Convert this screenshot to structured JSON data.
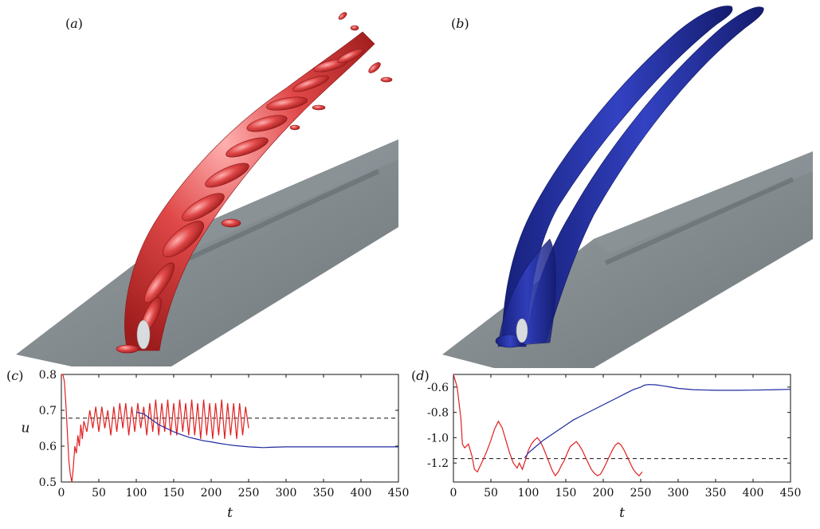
{
  "figure": {
    "panels": {
      "a": {
        "label": "a",
        "iso_color": "#d9393b"
      },
      "b": {
        "label": "b",
        "iso_color": "#2733a8"
      },
      "c": {
        "label": "c"
      },
      "d": {
        "label": "d"
      }
    },
    "colors": {
      "red": "#e02020",
      "blue": "#1f2a9e",
      "plate": "#7d8589",
      "dash": "#111111"
    }
  },
  "chart_data": [
    {
      "type": "line",
      "panel": "c",
      "xlabel": "t",
      "ylabel": "u",
      "xlim": [
        0,
        450
      ],
      "ylim": [
        0.5,
        0.8
      ],
      "xticks": [
        0,
        50,
        100,
        150,
        200,
        250,
        300,
        350,
        400,
        450
      ],
      "yticks": [
        0.5,
        0.6,
        0.7,
        0.8
      ],
      "ytick_labels": [
        "0.5",
        "0.6",
        "0.7",
        "0.8"
      ],
      "reference_line": 0.678,
      "series": [
        {
          "color": "red",
          "x": [
            0,
            2,
            4,
            6,
            8,
            10,
            12,
            14,
            16,
            18,
            20,
            22,
            24,
            26,
            28,
            30,
            34,
            38,
            42,
            46,
            50,
            54,
            58,
            62,
            66,
            70,
            74,
            78,
            82,
            86,
            90,
            94,
            98,
            102,
            106,
            110,
            114,
            118,
            122,
            126,
            130,
            134,
            138,
            142,
            146,
            150,
            154,
            158,
            162,
            166,
            170,
            174,
            178,
            182,
            186,
            190,
            194,
            198,
            202,
            206,
            210,
            214,
            218,
            222,
            226,
            230,
            234,
            238,
            242,
            246,
            250
          ],
          "y": [
            0.8,
            0.8,
            0.78,
            0.72,
            0.64,
            0.56,
            0.52,
            0.5,
            0.54,
            0.6,
            0.58,
            0.63,
            0.6,
            0.66,
            0.62,
            0.67,
            0.64,
            0.7,
            0.65,
            0.71,
            0.64,
            0.71,
            0.65,
            0.7,
            0.63,
            0.71,
            0.64,
            0.72,
            0.65,
            0.72,
            0.63,
            0.71,
            0.64,
            0.72,
            0.65,
            0.71,
            0.63,
            0.72,
            0.64,
            0.73,
            0.63,
            0.72,
            0.64,
            0.73,
            0.63,
            0.72,
            0.63,
            0.73,
            0.64,
            0.72,
            0.63,
            0.73,
            0.63,
            0.72,
            0.62,
            0.73,
            0.63,
            0.72,
            0.62,
            0.72,
            0.63,
            0.73,
            0.62,
            0.72,
            0.63,
            0.72,
            0.62,
            0.72,
            0.63,
            0.71,
            0.65
          ]
        },
        {
          "color": "blue",
          "x": [
            100,
            110,
            120,
            130,
            140,
            150,
            160,
            170,
            180,
            190,
            200,
            210,
            220,
            230,
            240,
            250,
            260,
            270,
            280,
            300,
            350,
            400,
            450
          ],
          "y": [
            0.695,
            0.69,
            0.675,
            0.66,
            0.65,
            0.64,
            0.632,
            0.625,
            0.62,
            0.615,
            0.612,
            0.608,
            0.605,
            0.602,
            0.6,
            0.598,
            0.597,
            0.596,
            0.597,
            0.598,
            0.598,
            0.598,
            0.598
          ]
        }
      ]
    },
    {
      "type": "line",
      "panel": "d",
      "xlabel": "t",
      "xlim": [
        0,
        450
      ],
      "ylim": [
        -1.35,
        -0.5
      ],
      "xticks": [
        0,
        50,
        100,
        150,
        200,
        250,
        300,
        350,
        400,
        450
      ],
      "yticks": [
        -1.2,
        -1.0,
        -0.8,
        -0.6
      ],
      "ytick_labels": [
        "-1.2",
        "-1.0",
        "-0.8",
        "-0.6"
      ],
      "reference_line": -1.165,
      "series": [
        {
          "color": "red",
          "x": [
            0,
            5,
            10,
            12,
            15,
            20,
            25,
            28,
            32,
            36,
            40,
            45,
            50,
            55,
            60,
            65,
            70,
            75,
            80,
            85,
            88,
            92,
            96,
            100,
            104,
            108,
            112,
            116,
            120,
            124,
            128,
            132,
            136,
            140,
            144,
            148,
            152,
            156,
            160,
            164,
            168,
            172,
            176,
            180,
            184,
            188,
            192,
            196,
            200,
            204,
            208,
            212,
            216,
            220,
            224,
            228,
            232,
            236,
            240,
            244,
            248,
            252
          ],
          "y": [
            -0.5,
            -0.6,
            -0.85,
            -1.05,
            -1.08,
            -1.05,
            -1.15,
            -1.25,
            -1.27,
            -1.22,
            -1.17,
            -1.1,
            -1.02,
            -0.93,
            -0.87,
            -0.92,
            -1.02,
            -1.12,
            -1.2,
            -1.24,
            -1.2,
            -1.25,
            -1.18,
            -1.1,
            -1.05,
            -1.02,
            -1.0,
            -1.03,
            -1.08,
            -1.14,
            -1.2,
            -1.26,
            -1.3,
            -1.27,
            -1.22,
            -1.18,
            -1.12,
            -1.07,
            -1.05,
            -1.03,
            -1.06,
            -1.1,
            -1.15,
            -1.2,
            -1.25,
            -1.28,
            -1.3,
            -1.29,
            -1.25,
            -1.2,
            -1.15,
            -1.1,
            -1.06,
            -1.04,
            -1.06,
            -1.1,
            -1.15,
            -1.2,
            -1.25,
            -1.28,
            -1.3,
            -1.27
          ]
        },
        {
          "color": "blue",
          "x": [
            95,
            100,
            110,
            120,
            130,
            140,
            150,
            160,
            170,
            180,
            190,
            200,
            210,
            220,
            230,
            240,
            250,
            255,
            260,
            270,
            280,
            290,
            300,
            320,
            350,
            380,
            400,
            430,
            450
          ],
          "y": [
            -1.16,
            -1.12,
            -1.07,
            -1.02,
            -0.98,
            -0.94,
            -0.9,
            -0.86,
            -0.83,
            -0.8,
            -0.77,
            -0.74,
            -0.71,
            -0.68,
            -0.65,
            -0.62,
            -0.6,
            -0.585,
            -0.58,
            -0.582,
            -0.59,
            -0.6,
            -0.61,
            -0.62,
            -0.625,
            -0.625,
            -0.624,
            -0.62,
            -0.618
          ]
        }
      ]
    }
  ]
}
